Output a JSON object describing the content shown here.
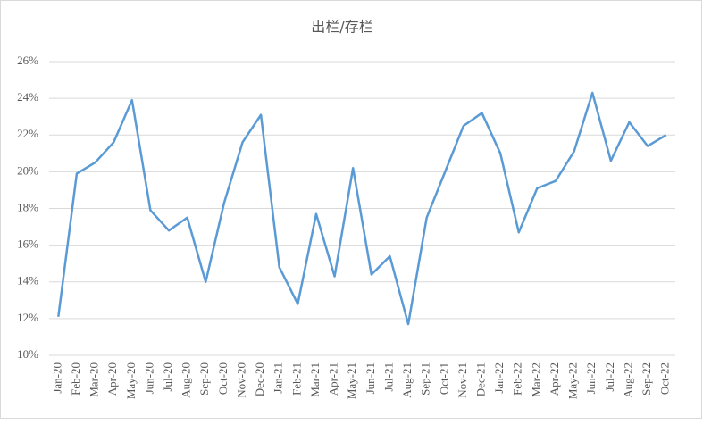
{
  "chart_data": {
    "type": "line",
    "title": "出栏/存栏",
    "categories": [
      "Jan-20",
      "Feb-20",
      "Mar-20",
      "Apr-20",
      "May-20",
      "Jun-20",
      "Jul-20",
      "Aug-20",
      "Sep-20",
      "Oct-20",
      "Nov-20",
      "Dec-20",
      "Jan-21",
      "Feb-21",
      "Mar-21",
      "Apr-21",
      "May-21",
      "Jun-21",
      "Jul-21",
      "Aug-21",
      "Sep-21",
      "Oct-21",
      "Nov-21",
      "Dec-21",
      "Jan-22",
      "Feb-22",
      "Mar-22",
      "Apr-22",
      "May-22",
      "Jun-22",
      "Jul-22",
      "Aug-22",
      "Sep-22",
      "Oct-22"
    ],
    "values": [
      12.1,
      19.9,
      20.5,
      21.6,
      23.9,
      17.9,
      16.8,
      17.5,
      14.0,
      18.3,
      21.6,
      23.1,
      14.8,
      12.8,
      17.7,
      14.3,
      20.2,
      14.4,
      15.4,
      11.7,
      17.5,
      20.0,
      22.5,
      23.2,
      21.0,
      16.7,
      19.1,
      19.5,
      21.1,
      24.3,
      20.6,
      22.7,
      21.4,
      22.0
    ],
    "color": "#5b9bd5",
    "ylim": [
      10,
      26
    ],
    "yticks": [
      {
        "value": 10,
        "label": "10%"
      },
      {
        "value": 12,
        "label": "12%"
      },
      {
        "value": 14,
        "label": "14%"
      },
      {
        "value": 16,
        "label": "16%"
      },
      {
        "value": 18,
        "label": "18%"
      },
      {
        "value": 20,
        "label": "20%"
      },
      {
        "value": 22,
        "label": "22%"
      },
      {
        "value": 24,
        "label": "24%"
      },
      {
        "value": 26,
        "label": "26%"
      }
    ],
    "grid": true
  }
}
